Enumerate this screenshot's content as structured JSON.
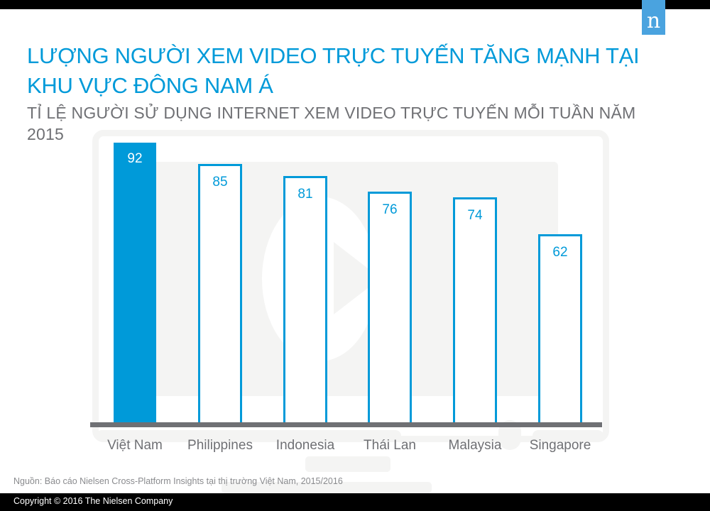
{
  "header": {
    "logo_letter": "n",
    "title": "LƯỢNG NGƯỜI XEM VIDEO TRỰC TUYẾN TĂNG MẠNH TẠI KHU VỰC ĐÔNG NAM Á",
    "subtitle": "TỈ LỆ NGƯỜI SỬ DỤNG INTERNET XEM VIDEO TRỰC TUYẾN MỖI TUẦN NĂM 2015"
  },
  "colors": {
    "accent": "#009ad9",
    "logo_bg": "#4aa3df",
    "axis": "#6f7074",
    "text_gray": "#6f7074",
    "background_decor": "#f4f4f3"
  },
  "chart_data": {
    "type": "bar",
    "title": "TỈ LỆ NGƯỜI SỬ DỤNG INTERNET XEM VIDEO TRỰC TUYẾN MỖI TUẦN NĂM 2015",
    "categories": [
      "Việt Nam",
      "Philippines",
      "Indonesia",
      "Thái Lan",
      "Malaysia",
      "Singapore"
    ],
    "values": [
      92,
      85,
      81,
      76,
      74,
      62
    ],
    "value_labels": [
      "92",
      "85",
      "81",
      "76",
      "74",
      "62"
    ],
    "highlight_index": 0,
    "xlabel": "",
    "ylabel": "",
    "ylim": [
      0,
      100
    ],
    "grid": false,
    "legend": "none",
    "data_labels": "inside-top"
  },
  "footer": {
    "source": "Nguồn: Báo cáo Nielsen Cross-Platform Insights tại thị trường Việt Nam, 2015/2016",
    "copyright": "Copyright © 2016 The Nielsen Company"
  }
}
